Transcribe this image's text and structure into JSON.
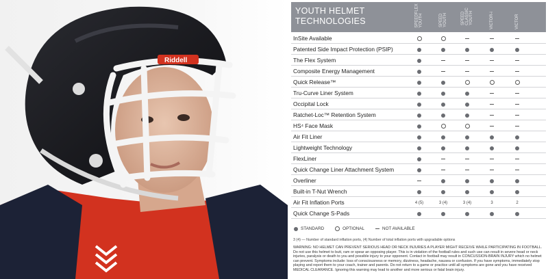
{
  "table": {
    "title_line1": "YOUTH HELMET",
    "title_line2": "TECHNOLOGIES",
    "columns": [
      "SPEEDFLEX\nYOUTH",
      "SPEED\nYOUTH",
      "SPEED\nCLASSIC\nYOUTH",
      "VICTOR-i",
      "VICTOR"
    ],
    "rows": [
      {
        "label": "InSite Available",
        "cells": [
          "O",
          "O",
          "-",
          "-",
          "-"
        ]
      },
      {
        "label": "Patented Side Impact Protection (PSIP)",
        "cells": [
          "S",
          "S",
          "S",
          "S",
          "S"
        ]
      },
      {
        "label": "The Flex System",
        "cells": [
          "S",
          "-",
          "-",
          "-",
          "-"
        ]
      },
      {
        "label": "Composite Energy Management",
        "cells": [
          "S",
          "-",
          "-",
          "-",
          "-"
        ]
      },
      {
        "label": "Quick Release™",
        "cells": [
          "S",
          "S",
          "O",
          "O",
          "O"
        ]
      },
      {
        "label": "Tru-Curve Liner System",
        "cells": [
          "S",
          "S",
          "S",
          "-",
          "-"
        ]
      },
      {
        "label": "Occipital Lock",
        "cells": [
          "S",
          "S",
          "S",
          "-",
          "-"
        ]
      },
      {
        "label": "Ratchet-Loc™ Retention System",
        "cells": [
          "S",
          "S",
          "S",
          "-",
          "-"
        ]
      },
      {
        "label": "HS⁴ Face Mask",
        "cells": [
          "S",
          "O",
          "O",
          "-",
          "-"
        ]
      },
      {
        "label": "Air Fit Liner",
        "cells": [
          "S",
          "S",
          "S",
          "S",
          "S"
        ]
      },
      {
        "label": "Lightweight Technology",
        "cells": [
          "S",
          "S",
          "S",
          "S",
          "S"
        ]
      },
      {
        "label": "FlexLiner",
        "cells": [
          "S",
          "-",
          "-",
          "-",
          "-"
        ]
      },
      {
        "label": "Quick Change Liner Attachment System",
        "cells": [
          "S",
          "-",
          "-",
          "-",
          "-"
        ]
      },
      {
        "label": "Overliner",
        "cells": [
          "-",
          "S",
          "S",
          "S",
          "S"
        ]
      },
      {
        "label": "Built-in T-Nut Wrench",
        "cells": [
          "S",
          "S",
          "S",
          "S",
          "S"
        ]
      },
      {
        "label": "Air Fit Inflation Ports",
        "cells": [
          "4 (5)",
          "3 (4)",
          "3 (4)",
          "3",
          "2"
        ]
      },
      {
        "label": "Quick Change S-Pads",
        "cells": [
          "S",
          "S",
          "S",
          "S",
          "S"
        ]
      }
    ]
  },
  "legend": {
    "standard": "STANDARD",
    "optional": "OPTIONAL",
    "not_available": "NOT AVAILABLE"
  },
  "footnote": "3 (4)  — Number of standard inflation ports, (4) Number of total inflation ports with upgradable options",
  "warning": "WARNING: NO HELMET CAN PREVENT SERIOUS HEAD OR NECK INJURIES A PLAYER MIGHT RECEIVE WHILE PARTICIPATING IN FOOTBALL. Do not use this helmet to butt, ram or spear an opposing player. This is in violation of the football rules and such use can result in severe head or neck injuries, paralysis or death to you and possible injury to your opponent. Contact in football may result in CONCUSSION-BRAIN INJURY which no helmet can prevent. Symptoms include: loss of consciousness or memory, dizziness, headache, nausea or confusion. If you have symptoms, immediately stop playing and report them to your coach, trainer and parents. Do not return to a game or practice until all symptoms are gone and you have received MEDICAL CLEARANCE. Ignoring this warning may lead to another and more serious or fatal brain injury.",
  "photo": {
    "helmet_brand": "Riddell",
    "colors": {
      "shell": "#141418",
      "facemask": "#f4f4f4",
      "jersey_red": "#d2321f",
      "jersey_navy": "#1c2236",
      "panel": "#8e9198"
    }
  }
}
